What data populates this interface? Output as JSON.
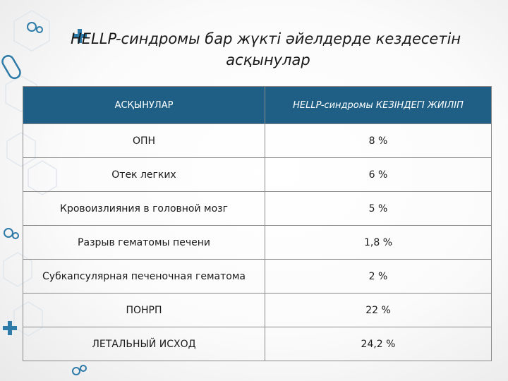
{
  "slide": {
    "title_line1": "HELLP-синдромы бар жүкті әйелдерде кездесетін",
    "title_line2": "асқынулар"
  },
  "table": {
    "header": {
      "col1": "АСҚЫНУЛАР",
      "col2": "HELLP-синдромы КЕЗІНДЕГІ ЖИІЛІП"
    },
    "rows": [
      {
        "name": "ОПН",
        "value": "8 %"
      },
      {
        "name": "Отек легких",
        "value": "6 %"
      },
      {
        "name": "Кровоизлияния в головной мозг",
        "value": "5 %"
      },
      {
        "name": "Разрыв гематомы печени",
        "value": "1,8 %"
      },
      {
        "name": "Субкапсулярная печеночная гематома",
        "value": "2 %"
      },
      {
        "name": "ПОНРП",
        "value": "22 %"
      },
      {
        "name": "ЛЕТАЛЬНЫЙ ИСХОД",
        "value": "24,2 %"
      }
    ]
  },
  "colors": {
    "header_bg": "#1f5f86",
    "decor": "#2e7aa8"
  },
  "icons": [
    "molecule-decor-icon",
    "plus-cross-icon",
    "pill-capsule-icon"
  ]
}
